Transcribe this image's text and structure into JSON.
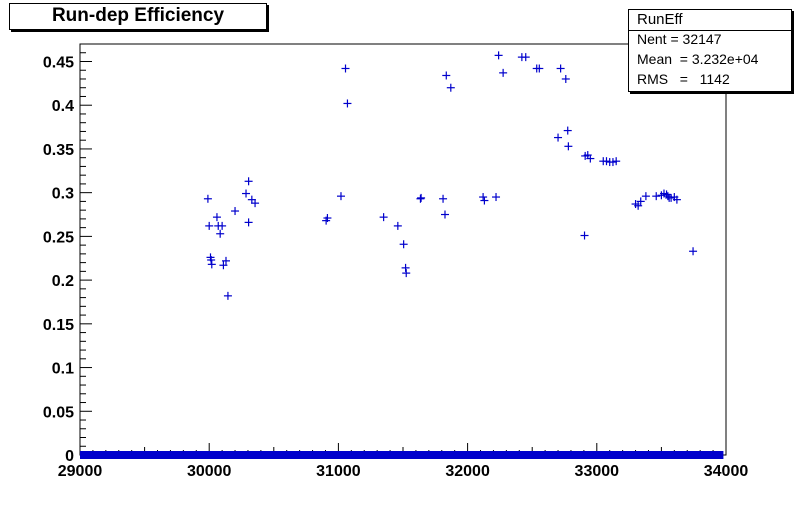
{
  "title": "Run-dep Efficiency",
  "stats": {
    "name": "RunEff",
    "rows": [
      {
        "label": "Nent",
        "sep": " = ",
        "value": "32147"
      },
      {
        "label": "Mean",
        "sep": "  = ",
        "value": "3.232e+04"
      },
      {
        "label": "RMS",
        "sep": "   =   ",
        "value": "1142"
      }
    ]
  },
  "colors": {
    "marker": "#0000cc",
    "axis": "#000000",
    "background": "#ffffff"
  },
  "chart_data": {
    "type": "scatter",
    "title": "Run-dep Efficiency",
    "xlabel": "",
    "ylabel": "",
    "xlim": [
      29000,
      34000
    ],
    "ylim": [
      0,
      0.47
    ],
    "grid": false,
    "x_ticks": [
      29000,
      30000,
      31000,
      32000,
      33000,
      34000
    ],
    "x_tick_labels": [
      "29000",
      "30000",
      "31000",
      "32000",
      "33000",
      "34000"
    ],
    "y_ticks": [
      0,
      0.05,
      0.1,
      0.15,
      0.2,
      0.25,
      0.3,
      0.35,
      0.4,
      0.45
    ],
    "y_tick_labels": [
      "0",
      "0.05",
      "0.1",
      "0.15",
      "0.2",
      "0.25",
      "0.3",
      "0.35",
      "0.4",
      "0.45"
    ],
    "zero_band": {
      "y": 0,
      "x_range": [
        29000,
        33980
      ]
    },
    "points": [
      {
        "x": 29990,
        "y": 0.293
      },
      {
        "x": 30000,
        "y": 0.262
      },
      {
        "x": 30010,
        "y": 0.226
      },
      {
        "x": 30015,
        "y": 0.223
      },
      {
        "x": 30020,
        "y": 0.218
      },
      {
        "x": 30060,
        "y": 0.272
      },
      {
        "x": 30070,
        "y": 0.262
      },
      {
        "x": 30085,
        "y": 0.253
      },
      {
        "x": 30100,
        "y": 0.262
      },
      {
        "x": 30110,
        "y": 0.217
      },
      {
        "x": 30130,
        "y": 0.222
      },
      {
        "x": 30145,
        "y": 0.182
      },
      {
        "x": 30200,
        "y": 0.279
      },
      {
        "x": 30285,
        "y": 0.299
      },
      {
        "x": 30305,
        "y": 0.313
      },
      {
        "x": 30305,
        "y": 0.266
      },
      {
        "x": 30330,
        "y": 0.292
      },
      {
        "x": 30355,
        "y": 0.288
      },
      {
        "x": 30905,
        "y": 0.268
      },
      {
        "x": 30915,
        "y": 0.271
      },
      {
        "x": 31020,
        "y": 0.296
      },
      {
        "x": 31055,
        "y": 0.442
      },
      {
        "x": 31070,
        "y": 0.402
      },
      {
        "x": 31350,
        "y": 0.272
      },
      {
        "x": 31460,
        "y": 0.262
      },
      {
        "x": 31505,
        "y": 0.241
      },
      {
        "x": 31520,
        "y": 0.214
      },
      {
        "x": 31525,
        "y": 0.208
      },
      {
        "x": 31635,
        "y": 0.293
      },
      {
        "x": 31640,
        "y": 0.294
      },
      {
        "x": 31810,
        "y": 0.293
      },
      {
        "x": 31825,
        "y": 0.275
      },
      {
        "x": 31835,
        "y": 0.434
      },
      {
        "x": 31870,
        "y": 0.42
      },
      {
        "x": 32120,
        "y": 0.295
      },
      {
        "x": 32130,
        "y": 0.291
      },
      {
        "x": 32220,
        "y": 0.295
      },
      {
        "x": 32240,
        "y": 0.457
      },
      {
        "x": 32275,
        "y": 0.437
      },
      {
        "x": 32420,
        "y": 0.455
      },
      {
        "x": 32450,
        "y": 0.455
      },
      {
        "x": 32535,
        "y": 0.442
      },
      {
        "x": 32555,
        "y": 0.442
      },
      {
        "x": 32700,
        "y": 0.363
      },
      {
        "x": 32720,
        "y": 0.442
      },
      {
        "x": 32760,
        "y": 0.43
      },
      {
        "x": 32775,
        "y": 0.371
      },
      {
        "x": 32780,
        "y": 0.353
      },
      {
        "x": 32905,
        "y": 0.251
      },
      {
        "x": 32910,
        "y": 0.342
      },
      {
        "x": 32930,
        "y": 0.343
      },
      {
        "x": 32950,
        "y": 0.339
      },
      {
        "x": 33050,
        "y": 0.336
      },
      {
        "x": 33075,
        "y": 0.336
      },
      {
        "x": 33100,
        "y": 0.335
      },
      {
        "x": 33125,
        "y": 0.335
      },
      {
        "x": 33150,
        "y": 0.336
      },
      {
        "x": 33300,
        "y": 0.287
      },
      {
        "x": 33320,
        "y": 0.285
      },
      {
        "x": 33340,
        "y": 0.29
      },
      {
        "x": 33380,
        "y": 0.296
      },
      {
        "x": 33460,
        "y": 0.296
      },
      {
        "x": 33500,
        "y": 0.297
      },
      {
        "x": 33520,
        "y": 0.299
      },
      {
        "x": 33540,
        "y": 0.298
      },
      {
        "x": 33550,
        "y": 0.296
      },
      {
        "x": 33560,
        "y": 0.294
      },
      {
        "x": 33575,
        "y": 0.294
      },
      {
        "x": 33600,
        "y": 0.295
      },
      {
        "x": 33620,
        "y": 0.292
      },
      {
        "x": 33745,
        "y": 0.233
      }
    ]
  }
}
